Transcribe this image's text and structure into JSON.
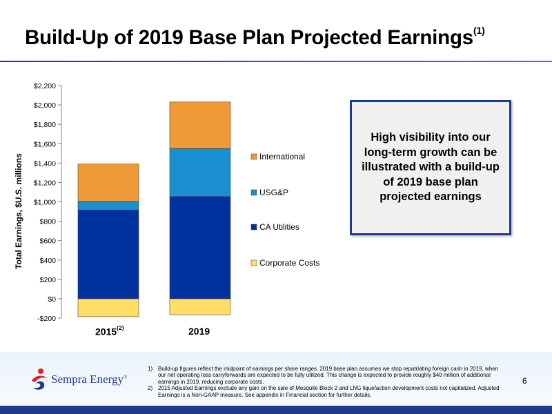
{
  "slide": {
    "title": "Build-Up of 2019 Base Plan Projected Earnings",
    "title_superscript": "(1)",
    "callout": "High visibility into our long-term growth can be illustrated with a build-up of 2019 base plan projected earnings",
    "page_number": "6",
    "logo_text": "Sempra Energy",
    "logo_trademark": "®",
    "footnotes": [
      {
        "num": "1)",
        "text": "Build-up figures reflect the midpoint of earnings per share ranges. 2019 base plan assumes we stop repatriating foreign cash in 2019, when our net operating loss carryforwards are expected to be fully utilized.  This change is expected to provide roughly $40 million of additional earnings in 2019, reducing corporate costs."
      },
      {
        "num": "2)",
        "text": "2015 Adjusted Earnings exclude any gain on the sale of Mesquite Block 2 and LNG liquefaction development costs not capitalized. Adjusted Earnings is a Non-GAAP measure.  See appendix in Financial section for further details."
      }
    ],
    "colors": {
      "accent": "#1f3a8f",
      "international": "#f09a39",
      "usgp": "#1a8fd0",
      "ca_utilities": "#0033a0",
      "corporate_costs": "#ffdf66"
    }
  },
  "chart_data": {
    "type": "bar",
    "stacked": true,
    "categories": [
      "2015",
      "2019"
    ],
    "category_superscripts": [
      "(2)",
      ""
    ],
    "ylabel": "Total Earnings, $U.S. millions",
    "ylim": [
      -200,
      2200
    ],
    "yticks": [
      -200,
      0,
      200,
      400,
      600,
      800,
      1000,
      1200,
      1400,
      1600,
      1800,
      2000,
      2200
    ],
    "ytick_labels": [
      "-$200",
      "$0",
      "$200",
      "$400",
      "$600",
      "$800",
      "$1,000",
      "$1,200",
      "$1,400",
      "$1,600",
      "$1,800",
      "$2,000",
      "$2,200"
    ],
    "legend_position": "right",
    "series": [
      {
        "name": "Corporate Costs",
        "color": "#ffdf66",
        "values": [
          -185,
          -165
        ]
      },
      {
        "name": "CA Utilities",
        "color": "#0033a0",
        "values": [
          915,
          1055
        ]
      },
      {
        "name": "USG&P",
        "color": "#1a8fd0",
        "values": [
          90,
          495
        ]
      },
      {
        "name": "International",
        "color": "#f09a39",
        "values": [
          385,
          480
        ]
      }
    ],
    "legend_order": [
      "International",
      "USG&P",
      "CA Utilities",
      "Corporate Costs"
    ]
  }
}
